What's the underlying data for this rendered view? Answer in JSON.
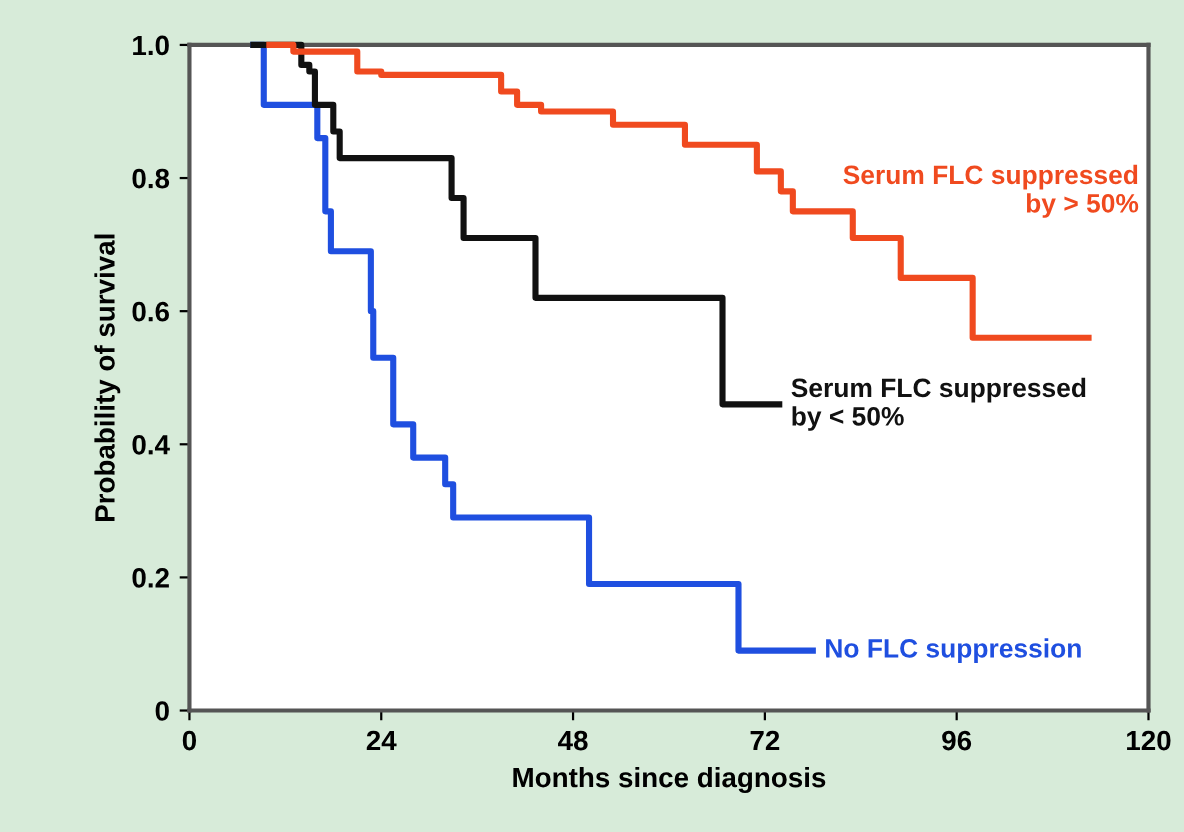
{
  "chart_data": {
    "type": "step",
    "xlabel": "Months since diagnosis",
    "ylabel": "Probability of survival",
    "xlim": [
      0,
      120
    ],
    "xticks": [
      0,
      24,
      48,
      72,
      96,
      120
    ],
    "ylim": [
      0,
      1
    ],
    "yticks": [
      {
        "value": 0,
        "label": "0"
      },
      0.2,
      0.4,
      0.6,
      0.8,
      {
        "value": 1,
        "label": "1.0"
      }
    ],
    "grid": false,
    "legend": false,
    "marker": "none",
    "line_style": "solid",
    "series": [
      {
        "name": "Serum FLC suppressed\nby > 50%",
        "color": "#f04a1f",
        "x": [
          10,
          13,
          21,
          24,
          38,
          39,
          41,
          44,
          53,
          62,
          71,
          74,
          75.5,
          83,
          89,
          98,
          112.5
        ],
        "values": [
          1.0,
          0.99,
          0.96,
          0.955,
          0.955,
          0.93,
          0.91,
          0.9,
          0.88,
          0.85,
          0.81,
          0.78,
          0.75,
          0.71,
          0.65,
          0.56,
          0.56
        ]
      },
      {
        "name": "Serum FLC suppressed\nby < 50%",
        "color": "#111111",
        "x": [
          8,
          14,
          15,
          15.7,
          18,
          18.8,
          32.8,
          34.3,
          43.3,
          66.7,
          73.8
        ],
        "values": [
          1.0,
          0.97,
          0.96,
          0.91,
          0.87,
          0.83,
          0.77,
          0.71,
          0.62,
          0.46,
          0.46
        ]
      },
      {
        "name": "No FLC suppression",
        "color": "#1f4fe0",
        "x": [
          8,
          9.3,
          16,
          17,
          17.7,
          18.5,
          22.7,
          23,
          25.5,
          28,
          32,
          33,
          50,
          68.7,
          78
        ],
        "values": [
          1.0,
          0.91,
          0.86,
          0.75,
          0.69,
          0.69,
          0.6,
          0.53,
          0.43,
          0.38,
          0.34,
          0.29,
          0.19,
          0.09,
          0.09
        ]
      }
    ]
  }
}
